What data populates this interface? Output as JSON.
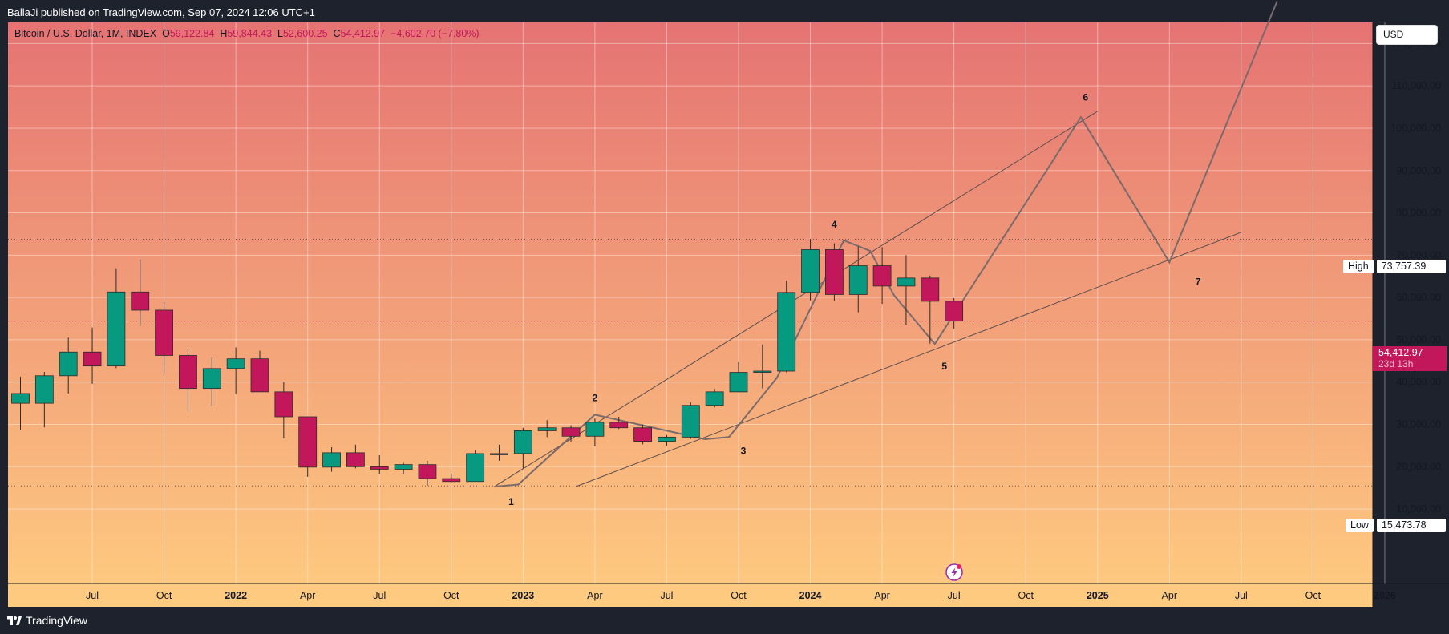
{
  "header": {
    "published": "BallaJi published on TradingView.com, Sep 07, 2024 12:06 UTC+1"
  },
  "footer": {
    "brand": "TradingView"
  },
  "legend": {
    "symbol": "Bitcoin / U.S. Dollar, 1M, INDEX",
    "open_k": "O",
    "open_v": "59,122.84",
    "high_k": "H",
    "high_v": "59,844.43",
    "low_k": "L",
    "low_v": "52,600.25",
    "close_k": "C",
    "close_v": "54,412.97",
    "change": "−4,602.70 (−7.80%)"
  },
  "currency": "USD",
  "high_tag": {
    "label": "High",
    "value": "73,757.39"
  },
  "low_tag": {
    "label": "Low",
    "value": "15,473.78"
  },
  "last_tag": {
    "value": "54,412.97",
    "countdown": "23d 13h"
  },
  "colors": {
    "up": "#089981",
    "down": "#c2185b",
    "bg_top": "#e57373",
    "bg_bottom": "#ffcc80",
    "grid": "rgba(255,255,255,0.4)",
    "line": "#5d4e4e"
  },
  "chart_data": {
    "type": "candlestick",
    "title": "Bitcoin / U.S. Dollar, 1M, INDEX",
    "y_axis": {
      "ticks": [
        10000,
        20000,
        30000,
        40000,
        50000,
        60000,
        70000,
        80000,
        90000,
        100000,
        110000,
        120000
      ],
      "tick_labels": [
        "10,000.00",
        "20,000.00",
        "30,000.00",
        "40,000.00",
        "50,000.00",
        "60,000.00",
        "70,000.00",
        "80,000.00",
        "90,000.00",
        "100,000.00",
        "110,000.00",
        "120,000.00"
      ],
      "ylim": [
        -7600,
        125000
      ]
    },
    "x_axis": {
      "ticks": [
        {
          "t": 3.0,
          "label": "Jul",
          "bold": false
        },
        {
          "t": 6.0,
          "label": "Oct",
          "bold": false
        },
        {
          "t": 9.0,
          "label": "2022",
          "bold": true
        },
        {
          "t": 12.0,
          "label": "Apr",
          "bold": false
        },
        {
          "t": 15.0,
          "label": "Jul",
          "bold": false
        },
        {
          "t": 18.0,
          "label": "Oct",
          "bold": false
        },
        {
          "t": 21.0,
          "label": "2023",
          "bold": true
        },
        {
          "t": 24.0,
          "label": "Apr",
          "bold": false
        },
        {
          "t": 27.0,
          "label": "Jul",
          "bold": false
        },
        {
          "t": 30.0,
          "label": "Oct",
          "bold": false
        },
        {
          "t": 33.0,
          "label": "2024",
          "bold": true
        },
        {
          "t": 36.0,
          "label": "Apr",
          "bold": false
        },
        {
          "t": 39.0,
          "label": "Jul",
          "bold": false
        },
        {
          "t": 42.0,
          "label": "Oct",
          "bold": false
        },
        {
          "t": 45.0,
          "label": "2025",
          "bold": true
        },
        {
          "t": 48.0,
          "label": "Apr",
          "bold": false
        },
        {
          "t": 51.0,
          "label": "Jul",
          "bold": false
        },
        {
          "t": 54.0,
          "label": "Oct",
          "bold": false
        },
        {
          "t": 57.0,
          "label": "2026",
          "bold": true
        }
      ]
    },
    "candles": [
      {
        "date": "2021-06",
        "o": 35000,
        "h": 41300,
        "l": 28800,
        "c": 37300
      },
      {
        "date": "2021-07",
        "o": 35000,
        "h": 42400,
        "l": 29300,
        "c": 41500
      },
      {
        "date": "2021-08",
        "o": 41500,
        "h": 50500,
        "l": 37300,
        "c": 47100
      },
      {
        "date": "2021-09",
        "o": 47100,
        "h": 52900,
        "l": 39600,
        "c": 43800
      },
      {
        "date": "2021-10",
        "o": 43800,
        "h": 66900,
        "l": 43300,
        "c": 61300
      },
      {
        "date": "2021-11",
        "o": 61300,
        "h": 69000,
        "l": 53300,
        "c": 57000
      },
      {
        "date": "2021-12",
        "o": 57000,
        "h": 59000,
        "l": 42100,
        "c": 46300
      },
      {
        "date": "2022-01",
        "o": 46300,
        "h": 47900,
        "l": 33000,
        "c": 38500
      },
      {
        "date": "2022-02",
        "o": 38500,
        "h": 45800,
        "l": 34300,
        "c": 43200
      },
      {
        "date": "2022-03",
        "o": 43200,
        "h": 48200,
        "l": 37200,
        "c": 45500
      },
      {
        "date": "2022-04",
        "o": 45500,
        "h": 47400,
        "l": 37700,
        "c": 37700
      },
      {
        "date": "2022-05",
        "o": 37700,
        "h": 40000,
        "l": 26700,
        "c": 31800
      },
      {
        "date": "2022-06",
        "o": 31800,
        "h": 31900,
        "l": 17600,
        "c": 19900
      },
      {
        "date": "2022-07",
        "o": 19900,
        "h": 24600,
        "l": 18800,
        "c": 23300
      },
      {
        "date": "2022-08",
        "o": 23300,
        "h": 25200,
        "l": 19600,
        "c": 20000
      },
      {
        "date": "2022-09",
        "o": 20000,
        "h": 22700,
        "l": 18200,
        "c": 19400
      },
      {
        "date": "2022-10",
        "o": 19400,
        "h": 20900,
        "l": 18200,
        "c": 20500
      },
      {
        "date": "2022-11",
        "o": 20500,
        "h": 21400,
        "l": 15500,
        "c": 17200
      },
      {
        "date": "2022-12",
        "o": 17200,
        "h": 18400,
        "l": 16300,
        "c": 16500
      },
      {
        "date": "2023-01",
        "o": 16500,
        "h": 23900,
        "l": 16500,
        "c": 23100
      },
      {
        "date": "2023-02",
        "o": 23100,
        "h": 25200,
        "l": 21400,
        "c": 23100
      },
      {
        "date": "2023-03",
        "o": 23100,
        "h": 29200,
        "l": 19600,
        "c": 28500
      },
      {
        "date": "2023-04",
        "o": 28500,
        "h": 31000,
        "l": 27000,
        "c": 29200
      },
      {
        "date": "2023-05",
        "o": 29200,
        "h": 29800,
        "l": 25900,
        "c": 27200
      },
      {
        "date": "2023-06",
        "o": 27200,
        "h": 31400,
        "l": 24800,
        "c": 30500
      },
      {
        "date": "2023-07",
        "o": 30500,
        "h": 31800,
        "l": 28900,
        "c": 29200
      },
      {
        "date": "2023-08",
        "o": 29200,
        "h": 30000,
        "l": 25300,
        "c": 26000
      },
      {
        "date": "2023-09",
        "o": 26000,
        "h": 27500,
        "l": 24900,
        "c": 27000
      },
      {
        "date": "2023-10",
        "o": 27000,
        "h": 35200,
        "l": 26600,
        "c": 34500
      },
      {
        "date": "2023-11",
        "o": 34500,
        "h": 38400,
        "l": 34000,
        "c": 37700
      },
      {
        "date": "2023-12",
        "o": 37700,
        "h": 44700,
        "l": 37600,
        "c": 42300
      },
      {
        "date": "2024-01",
        "o": 42300,
        "h": 48900,
        "l": 38500,
        "c": 42600
      },
      {
        "date": "2024-02",
        "o": 42600,
        "h": 64000,
        "l": 42300,
        "c": 61200
      },
      {
        "date": "2024-03",
        "o": 61200,
        "h": 73757,
        "l": 59300,
        "c": 71300
      },
      {
        "date": "2024-04",
        "o": 71300,
        "h": 72800,
        "l": 59200,
        "c": 60700
      },
      {
        "date": "2024-05",
        "o": 60700,
        "h": 72000,
        "l": 56500,
        "c": 67500
      },
      {
        "date": "2024-06",
        "o": 67500,
        "h": 71900,
        "l": 58500,
        "c": 62700
      },
      {
        "date": "2024-07",
        "o": 62700,
        "h": 70000,
        "l": 53500,
        "c": 64600
      },
      {
        "date": "2024-08",
        "o": 64600,
        "h": 65200,
        "l": 49100,
        "c": 59100
      },
      {
        "date": "2024-09",
        "o": 59123,
        "h": 59844,
        "l": 52600,
        "c": 54413
      }
    ],
    "channel_lines": [
      {
        "t1": 19.8,
        "v1": 15300,
        "t2": 45.0,
        "v2": 104000
      },
      {
        "t1": 23.2,
        "v1": 15300,
        "t2": 51.0,
        "v2": 75400
      }
    ],
    "wave_path": [
      {
        "t": 19.8,
        "v": 15300
      },
      {
        "t": 20.8,
        "v": 15800
      },
      {
        "t": 24.0,
        "v": 32300
      },
      {
        "t": 28.6,
        "v": 26500
      },
      {
        "t": 29.6,
        "v": 27000
      },
      {
        "t": 31.6,
        "v": 41000
      },
      {
        "t": 33.4,
        "v": 62000
      },
      {
        "t": 34.4,
        "v": 73500
      },
      {
        "t": 35.5,
        "v": 71000
      },
      {
        "t": 36.5,
        "v": 60500
      },
      {
        "t": 38.2,
        "v": 49000
      },
      {
        "t": 44.3,
        "v": 102600
      },
      {
        "t": 48.0,
        "v": 68300
      },
      {
        "t": 52.5,
        "v": 130000
      }
    ],
    "wave_labels": [
      {
        "text": "1",
        "t": 20.5,
        "v": 11000
      },
      {
        "text": "2",
        "t": 24.0,
        "v": 35500
      },
      {
        "text": "3",
        "t": 30.2,
        "v": 23000
      },
      {
        "text": "4",
        "t": 34.0,
        "v": 76500
      },
      {
        "text": "5",
        "t": 38.6,
        "v": 43000
      },
      {
        "text": "6",
        "t": 44.5,
        "v": 106500
      },
      {
        "text": "7",
        "t": 49.2,
        "v": 63000
      }
    ],
    "reference_levels": {
      "high": 73757.39,
      "low": 15473.78,
      "last": 54412.97
    }
  }
}
